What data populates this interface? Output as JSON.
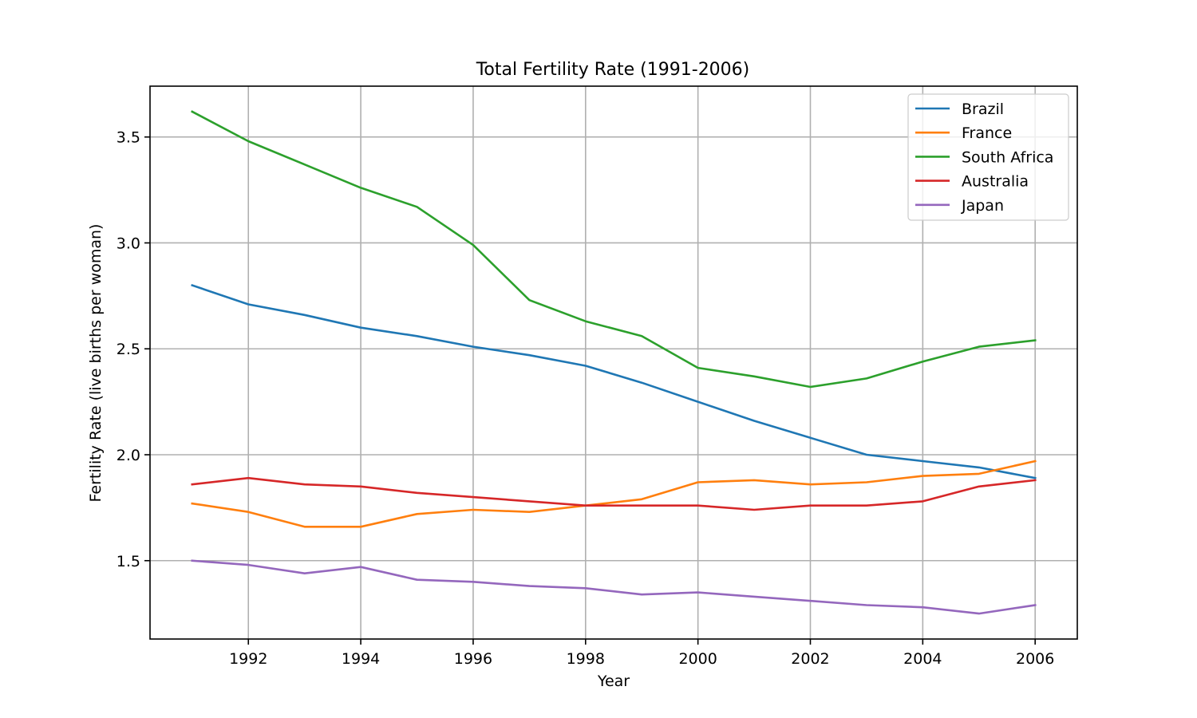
{
  "chart_data": {
    "type": "line",
    "title": "Total Fertility Rate (1991-2006)",
    "xlabel": "Year",
    "ylabel": "Fertility Rate (live births per woman)",
    "x": [
      1991,
      1992,
      1993,
      1994,
      1995,
      1996,
      1997,
      1998,
      1999,
      2000,
      2001,
      2002,
      2003,
      2004,
      2005,
      2006
    ],
    "xlim": [
      1990.25,
      2006.75
    ],
    "ylim": [
      1.13,
      3.74
    ],
    "xticks": [
      1992,
      1994,
      1996,
      1998,
      2000,
      2002,
      2004,
      2006
    ],
    "yticks": [
      1.5,
      2.0,
      2.5,
      3.0,
      3.5
    ],
    "ytick_labels": [
      "1.5",
      "2.0",
      "2.5",
      "3.0",
      "3.5"
    ],
    "grid": true,
    "legend_position": "top-right",
    "series": [
      {
        "name": "Brazil",
        "color": "#1f77b4",
        "values": [
          2.8,
          2.71,
          2.66,
          2.6,
          2.56,
          2.51,
          2.47,
          2.42,
          2.34,
          2.25,
          2.16,
          2.08,
          2.0,
          1.97,
          1.94,
          1.89
        ]
      },
      {
        "name": "France",
        "color": "#ff7f0e",
        "values": [
          1.77,
          1.73,
          1.66,
          1.66,
          1.72,
          1.74,
          1.73,
          1.76,
          1.79,
          1.87,
          1.88,
          1.86,
          1.87,
          1.9,
          1.91,
          1.97
        ]
      },
      {
        "name": "South Africa",
        "color": "#2ca02c",
        "values": [
          3.62,
          3.48,
          3.37,
          3.26,
          3.17,
          2.99,
          2.73,
          2.63,
          2.56,
          2.41,
          2.37,
          2.32,
          2.36,
          2.44,
          2.51,
          2.54
        ]
      },
      {
        "name": "Australia",
        "color": "#d62728",
        "values": [
          1.86,
          1.89,
          1.86,
          1.85,
          1.82,
          1.8,
          1.78,
          1.76,
          1.76,
          1.76,
          1.74,
          1.76,
          1.76,
          1.78,
          1.85,
          1.88
        ]
      },
      {
        "name": "Japan",
        "color": "#9467bd",
        "values": [
          1.5,
          1.48,
          1.44,
          1.47,
          1.41,
          1.4,
          1.38,
          1.37,
          1.34,
          1.35,
          1.33,
          1.31,
          1.29,
          1.28,
          1.25,
          1.29
        ]
      }
    ]
  }
}
